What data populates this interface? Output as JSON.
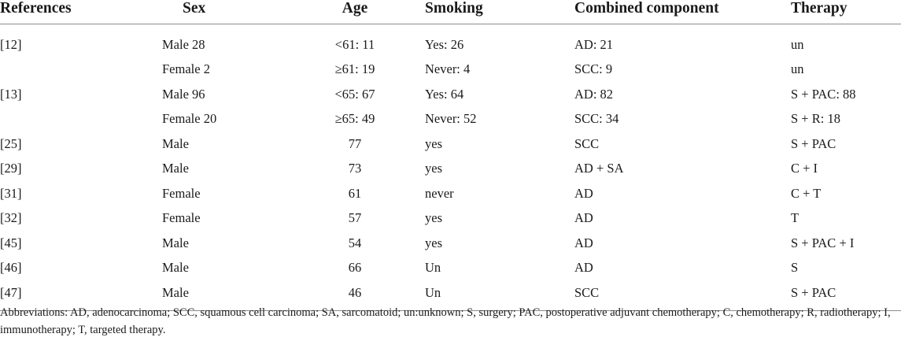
{
  "table": {
    "headers": [
      "References",
      "Sex",
      "Age",
      "Smoking",
      "Combined component",
      "Therapy"
    ],
    "rows": [
      [
        "[12]",
        "Male 28",
        "<61: 11",
        "Yes: 26",
        "AD: 21",
        "un"
      ],
      [
        "",
        "Female 2",
        "≥61: 19",
        "Never: 4",
        "SCC: 9",
        "un"
      ],
      [
        "[13]",
        "Male 96",
        "<65: 67",
        "Yes: 64",
        "AD: 82",
        "S + PAC: 88"
      ],
      [
        "",
        "Female 20",
        "≥65: 49",
        "Never: 52",
        "SCC: 34",
        "S + R: 18"
      ],
      [
        "[25]",
        "Male",
        "77",
        "yes",
        "SCC",
        "S + PAC"
      ],
      [
        "[29]",
        "Male",
        "73",
        "yes",
        "AD + SA",
        "C + I"
      ],
      [
        "[31]",
        "Female",
        "61",
        "never",
        "AD",
        "C + T"
      ],
      [
        "[32]",
        "Female",
        "57",
        "yes",
        "AD",
        "T"
      ],
      [
        "[45]",
        "Male",
        "54",
        "yes",
        "AD",
        "S + PAC + I"
      ],
      [
        "[46]",
        "Male",
        "66",
        "Un",
        "AD",
        "S"
      ],
      [
        "[47]",
        "Male",
        "46",
        "Un",
        "SCC",
        "S + PAC"
      ]
    ]
  },
  "footnote": "Abbreviations: AD, adenocarcinoma; SCC, squamous cell carcinoma; SA, sarcomatoid; un:unknown; S, surgery; PAC, postoperative adjuvant chemotherapy; C, chemotherapy; R, radiotherapy; I, immunotherapy; T, targeted therapy."
}
